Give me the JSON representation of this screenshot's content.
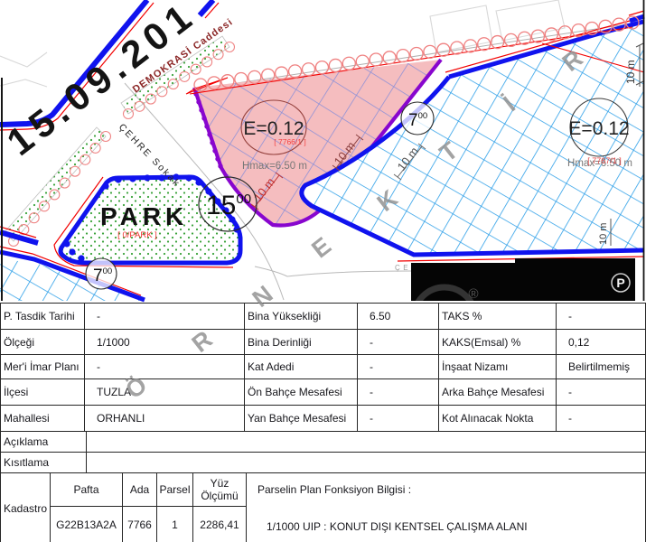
{
  "map": {
    "date_stamp": "15.09.201",
    "streets": {
      "demokrasi": "DEMOKRASİ Caddesi",
      "cehre": "ÇEHRE Sokak",
      "cehre_caps": "ÇEHRE SOKAK"
    },
    "park": {
      "label": "PARK",
      "ref": "[ 0/PARK ]"
    },
    "parcel_pink": {
      "emsal": "E=0.12",
      "ref": "[ 7766/1 ]",
      "hmax": "Hmax=6.50 m"
    },
    "parcel_blue": {
      "emsal": "E=0.12",
      "ref": "[ 7767/1 ]",
      "hmax": "Hmax=6.50 m"
    },
    "nodes": {
      "n15": "15",
      "n7": "7",
      "sup": "00"
    },
    "dims": {
      "d10": "10 m"
    },
    "registered_mark": "®",
    "parking_label": "P",
    "watermark_letters": [
      "Ö",
      "R",
      "N",
      "E",
      "K",
      "T",
      "İ",
      "R"
    ],
    "colors": {
      "boundary_blue": "#1013ee",
      "hatch_cyan": "#2d9fe8",
      "hatch_pink": "#8a8fd8",
      "pink_fill": "#f5bdbf",
      "purple": "#8806ce",
      "red": "#f20000",
      "green": "#3aa23a",
      "watermark_gray": "#8f8f8f"
    }
  },
  "table": {
    "rows": [
      {
        "l1": "P. Tasdik Tarihi",
        "v1": "-",
        "l2": "Bina Yüksekliği",
        "v2": "6.50",
        "l3": "TAKS %",
        "v3": "-"
      },
      {
        "l1": "Ölçeği",
        "v1": "1/1000",
        "l2": "Bina Derinliği",
        "v2": "-",
        "l3": "KAKS(Emsal) %",
        "v3": "0,12"
      },
      {
        "l1": "Mer'i İmar Planı",
        "v1": "-",
        "l2": "Kat Adedi",
        "v2": "-",
        "l3": "İnşaat Nizamı",
        "v3": "Belirtilmemiş"
      },
      {
        "l1": "İlçesi",
        "v1": "TUZLA",
        "l2": "Ön Bahçe Mesafesi",
        "v2": "-",
        "l3": "Arka Bahçe Mesafesi",
        "v3": "-"
      },
      {
        "l1": "Mahallesi",
        "v1": "ORHANLI",
        "l2": "Yan Bahçe Mesafesi",
        "v2": "-",
        "l3": "Kot Alınacak Nokta",
        "v3": "-"
      }
    ],
    "aciklama": "Açıklama",
    "kisitlama": "Kısıtlama",
    "kadastro": {
      "label": "Kadastro",
      "headers": {
        "pafta": "Pafta",
        "ada": "Ada",
        "parsel": "Parsel",
        "yuz": "Yüz Ölçümü"
      },
      "values": {
        "pafta": "G22B13A2A",
        "ada": "7766",
        "parsel": "1",
        "yuz": "2286,41"
      },
      "fonksiyon_title": "Parselin Plan Fonksiyon Bilgisi :",
      "fonksiyon_value": "1/1000 UIP : KONUT DIŞI KENTSEL ÇALIŞMA ALANI"
    }
  }
}
